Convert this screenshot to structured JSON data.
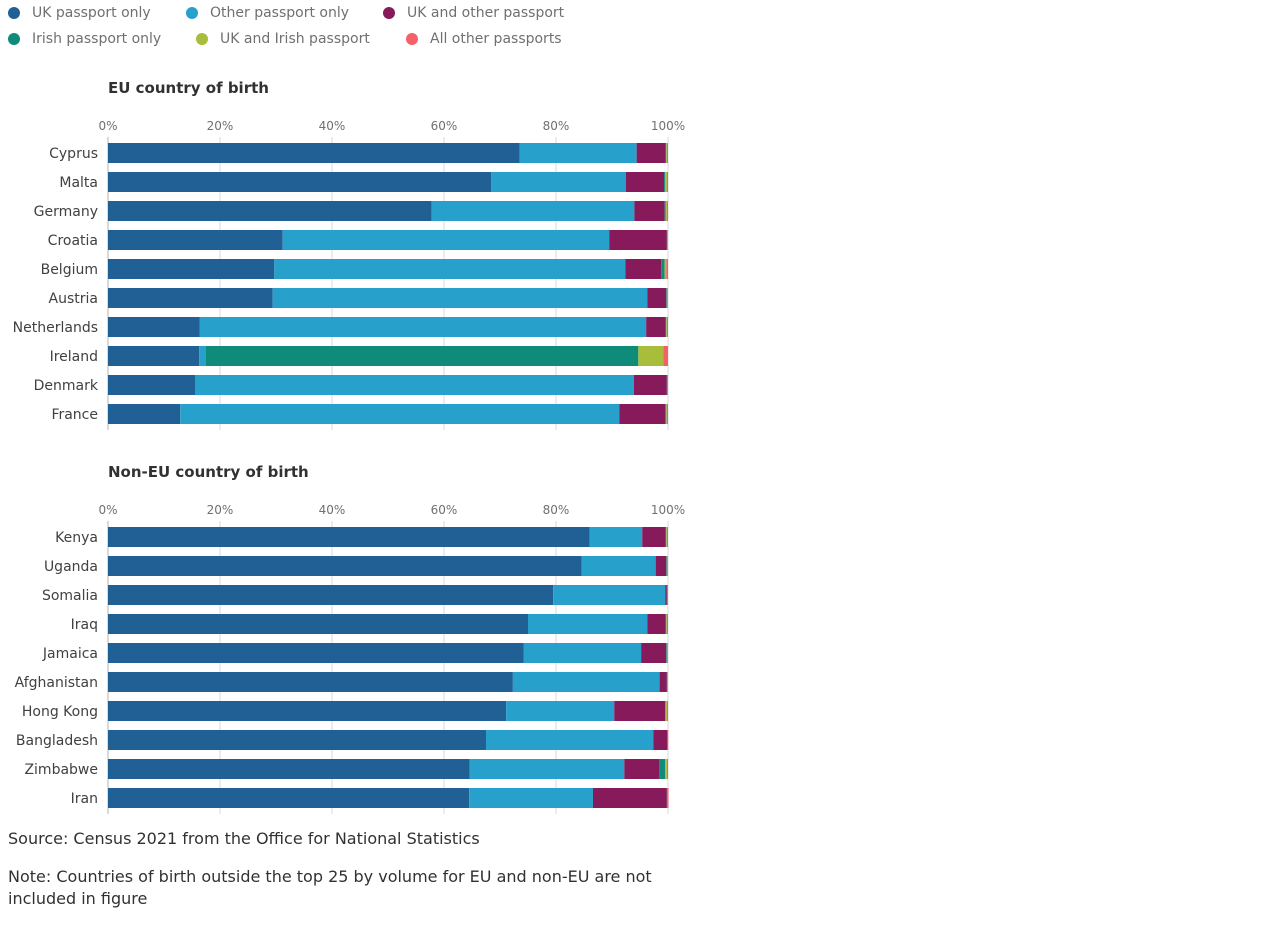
{
  "legend": [
    {
      "label": "UK passport only",
      "color": "#206095"
    },
    {
      "label": "Other passport only",
      "color": "#27a0cc"
    },
    {
      "label": "UK and other passport",
      "color": "#871a5b"
    },
    {
      "label": "Irish passport only",
      "color": "#0f8b7a"
    },
    {
      "label": "UK and Irish passport",
      "color": "#a8bd3a"
    },
    {
      "label": "All other passports",
      "color": "#f66068"
    }
  ],
  "chart_data": [
    {
      "type": "bar",
      "orientation": "horizontal",
      "stacked": true,
      "title": "EU country of birth",
      "xlim": [
        0,
        100
      ],
      "xticks": [
        "0%",
        "20%",
        "40%",
        "60%",
        "80%",
        "100%"
      ],
      "categories": [
        "Cyprus",
        "Malta",
        "Germany",
        "Croatia",
        "Belgium",
        "Austria",
        "Netherlands",
        "Ireland",
        "Denmark",
        "France"
      ],
      "series": [
        {
          "name": "UK passport only",
          "values": [
            73.5,
            68.4,
            57.8,
            31.2,
            29.7,
            29.4,
            16.4,
            16.3,
            15.6,
            12.9
          ]
        },
        {
          "name": "Other passport only",
          "values": [
            20.9,
            24.1,
            36.2,
            58.3,
            62.7,
            66.9,
            79.7,
            1.2,
            78.3,
            78.4
          ]
        },
        {
          "name": "UK and other passport",
          "values": [
            5.2,
            6.8,
            5.4,
            10.3,
            6.4,
            3.4,
            3.5,
            0.0,
            5.9,
            8.2
          ]
        },
        {
          "name": "Irish passport only",
          "values": [
            0.1,
            0.2,
            0.2,
            0.05,
            0.6,
            0.1,
            0.1,
            77.2,
            0.1,
            0.2
          ]
        },
        {
          "name": "UK and Irish passport",
          "values": [
            0.1,
            0.3,
            0.2,
            0.05,
            0.3,
            0.1,
            0.1,
            4.5,
            0.05,
            0.1
          ]
        },
        {
          "name": "All other passports",
          "values": [
            0.2,
            0.2,
            0.2,
            0.1,
            0.3,
            0.1,
            0.2,
            0.8,
            0.05,
            0.2
          ]
        }
      ]
    },
    {
      "type": "bar",
      "orientation": "horizontal",
      "stacked": true,
      "title": "Non-EU country of birth",
      "xlim": [
        0,
        100
      ],
      "xticks": [
        "0%",
        "20%",
        "40%",
        "60%",
        "80%",
        "100%"
      ],
      "categories": [
        "Kenya",
        "Uganda",
        "Somalia",
        "Iraq",
        "Jamaica",
        "Afghanistan",
        "Hong Kong",
        "Bangladesh",
        "Zimbabwe",
        "Iran"
      ],
      "series": [
        {
          "name": "UK passport only",
          "values": [
            86.0,
            84.6,
            79.5,
            75.0,
            74.2,
            72.3,
            71.1,
            67.5,
            64.6,
            64.5
          ]
        },
        {
          "name": "Other passport only",
          "values": [
            9.4,
            13.2,
            20.0,
            21.3,
            21.0,
            26.2,
            19.3,
            29.9,
            27.6,
            22.1
          ]
        },
        {
          "name": "UK and other passport",
          "values": [
            4.2,
            1.9,
            0.3,
            3.3,
            4.5,
            1.3,
            9.1,
            2.5,
            6.2,
            13.2
          ]
        },
        {
          "name": "Irish passport only",
          "values": [
            0.1,
            0.1,
            0.1,
            0.1,
            0.1,
            0.05,
            0.1,
            0.05,
            1.1,
            0.1
          ]
        },
        {
          "name": "UK and Irish passport",
          "values": [
            0.1,
            0.05,
            0.05,
            0.1,
            0.1,
            0.05,
            0.2,
            0.05,
            0.3,
            0.1
          ]
        },
        {
          "name": "All other passports",
          "values": [
            0.2,
            0.15,
            0.05,
            0.2,
            0.1,
            0.1,
            0.2,
            0.05,
            0.2,
            0.1
          ]
        }
      ]
    }
  ],
  "notes": {
    "source": "Source: Census 2021 from the Office for National Statistics",
    "note": "Note: Countries of birth outside the top 25 by volume for EU and non-EU are not included in figure"
  }
}
